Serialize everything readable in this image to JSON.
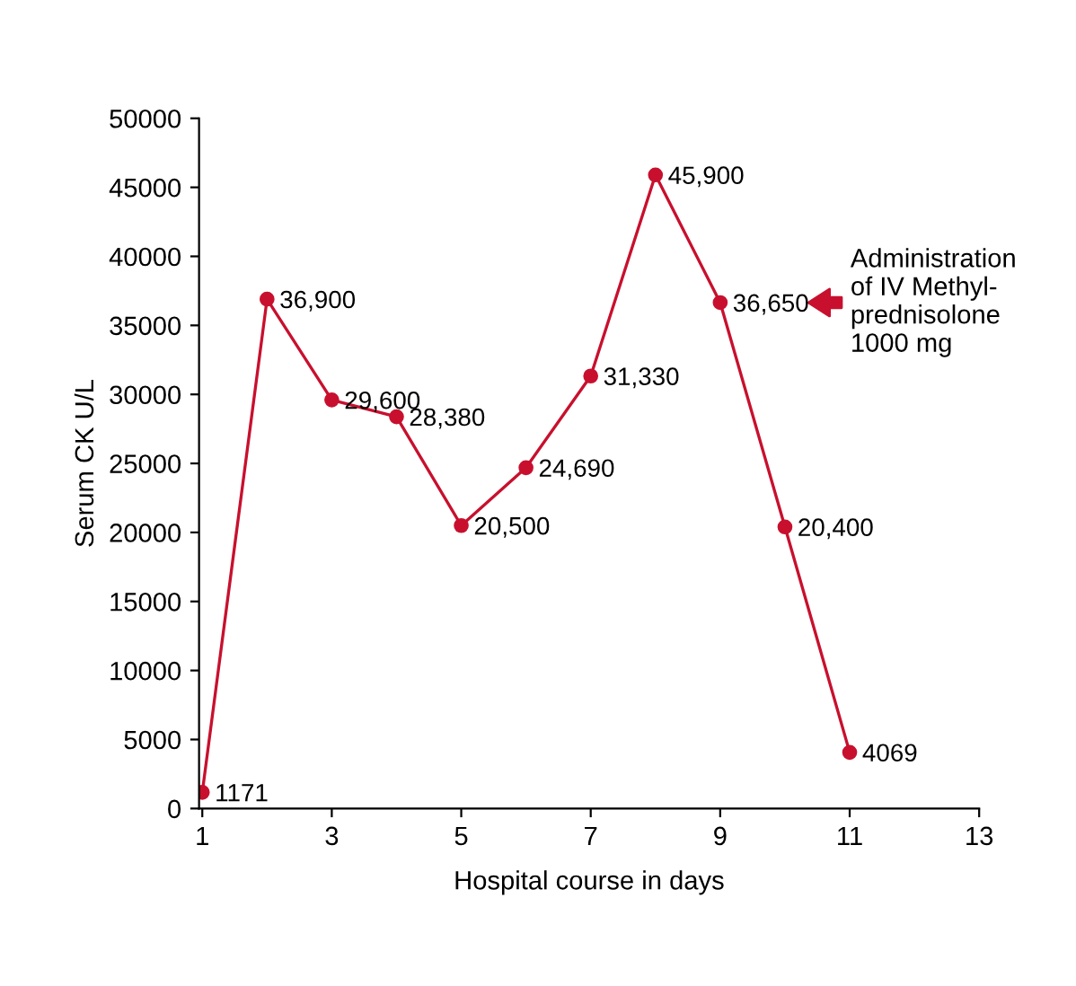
{
  "chart_data": {
    "type": "line",
    "xlabel": "Hospital course in days",
    "ylabel": "Serum CK U/L",
    "x": [
      1,
      2,
      3,
      4,
      5,
      6,
      7,
      8,
      9,
      10,
      11
    ],
    "series": [
      {
        "color": "#c8102e",
        "values": [
          1171,
          36900,
          29600,
          28380,
          20500,
          24690,
          31330,
          45900,
          36650,
          20400,
          4069
        ],
        "value_labels": [
          "1171",
          "36,900",
          "29,600",
          "28,380",
          "20,500",
          "24,690",
          "31,330",
          "45,900",
          "36,650",
          "20,400",
          "4069"
        ]
      }
    ],
    "xlim": [
      0.95,
      13
    ],
    "xticks": [
      1,
      3,
      5,
      7,
      9,
      11,
      13
    ],
    "ylim": [
      0,
      50000
    ],
    "yticks": [
      0,
      5000,
      10000,
      15000,
      20000,
      25000,
      30000,
      35000,
      40000,
      45000,
      50000
    ],
    "marker": "circle",
    "line_style": "solid",
    "grid": false,
    "legend": false,
    "annotations": [
      "Administration\nof IV Methyl-\nprednisolone\n1000 mg"
    ]
  }
}
